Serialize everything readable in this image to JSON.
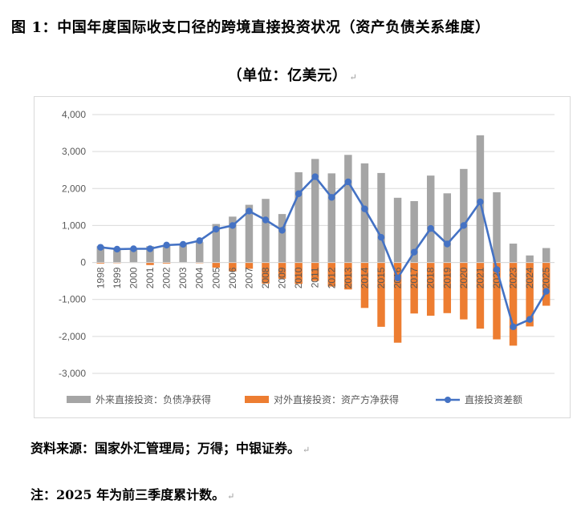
{
  "title_line1": "图 1：中国年度国际收支口径的跨境直接投资状况（资产负债关系维度）",
  "title_line2": "（单位：亿美元）",
  "source_note": "资料来源：国家外汇管理局；万得；中银证券。",
  "footnote": "注：2025 年为前三季度累计数。",
  "chart_data": {
    "type": "bar+line",
    "title": "",
    "xlabel": "",
    "ylabel": "",
    "ylim": [
      -3000,
      4000
    ],
    "yticks": [
      4000,
      3000,
      2000,
      1000,
      0,
      -1000,
      -2000,
      -3000
    ],
    "ytick_labels": [
      "4,000",
      "3,000",
      "2,000",
      "1,000",
      "0",
      "-1,000",
      "-2,000",
      "-3,000"
    ],
    "grid": true,
    "legend_position": "bottom",
    "categories": [
      "1998",
      "1999",
      "2000",
      "2001",
      "2002",
      "2003",
      "2004",
      "2005",
      "2006",
      "2007",
      "2008",
      "2009",
      "2010",
      "2011",
      "2012",
      "2013",
      "2014",
      "2015",
      "2016",
      "2017",
      "2018",
      "2019",
      "2020",
      "2021",
      "2022",
      "2023",
      "2024",
      "2025"
    ],
    "series": [
      {
        "name": "外来直接投资：负债净获得",
        "type": "bar",
        "color": "#a5a5a5",
        "values": [
          440,
          380,
          380,
          440,
          470,
          490,
          550,
          1040,
          1240,
          1560,
          1720,
          1310,
          2440,
          2800,
          2410,
          2910,
          2680,
          2420,
          1750,
          1660,
          2350,
          1870,
          2530,
          3440,
          1900,
          510,
          190,
          390
        ]
      },
      {
        "name": "对外直接投资：资产方净获得",
        "type": "bar",
        "color": "#ed7d31",
        "values": [
          -30,
          -20,
          -10,
          -70,
          -30,
          -10,
          -20,
          -140,
          -240,
          -170,
          -570,
          -440,
          -580,
          -500,
          -650,
          -730,
          -1230,
          -1740,
          -2170,
          -1380,
          -1440,
          -1370,
          -1540,
          -1790,
          -2080,
          -2250,
          -1730,
          -1170
        ]
      },
      {
        "name": "直接投资差额",
        "type": "line",
        "color": "#4472c4",
        "values": [
          410,
          360,
          370,
          370,
          470,
          490,
          590,
          900,
          1000,
          1390,
          1150,
          870,
          1860,
          2320,
          1760,
          2180,
          1450,
          680,
          -420,
          280,
          920,
          500,
          1000,
          1640,
          -190,
          -1740,
          -1540,
          -780
        ]
      }
    ]
  }
}
